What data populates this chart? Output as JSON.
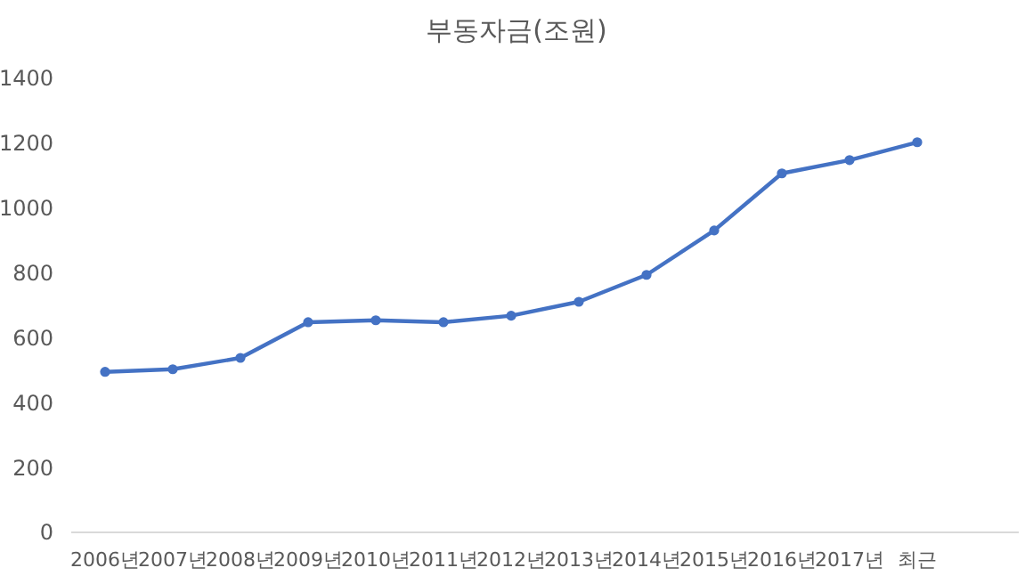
{
  "chart_data": {
    "type": "line",
    "title": "부동자금(조원)",
    "categories": [
      "2006년",
      "2007년",
      "2008년",
      "2009년",
      "2010년",
      "2011년",
      "2012년",
      "2013년",
      "2014년",
      "2015년",
      "2016년",
      "2017년",
      "최근",
      null
    ],
    "series": [
      {
        "color": "#4472c4",
        "values": [
          495,
          503,
          538,
          648,
          654,
          648,
          668,
          711,
          794,
          931,
          1107,
          1148,
          1203,
          null
        ]
      }
    ],
    "ylim": [
      0,
      1400
    ],
    "yticks": [
      0,
      200,
      400,
      600,
      800,
      1000,
      1200,
      1400
    ],
    "grid": false,
    "marker": "circle",
    "line_style": "solid"
  }
}
